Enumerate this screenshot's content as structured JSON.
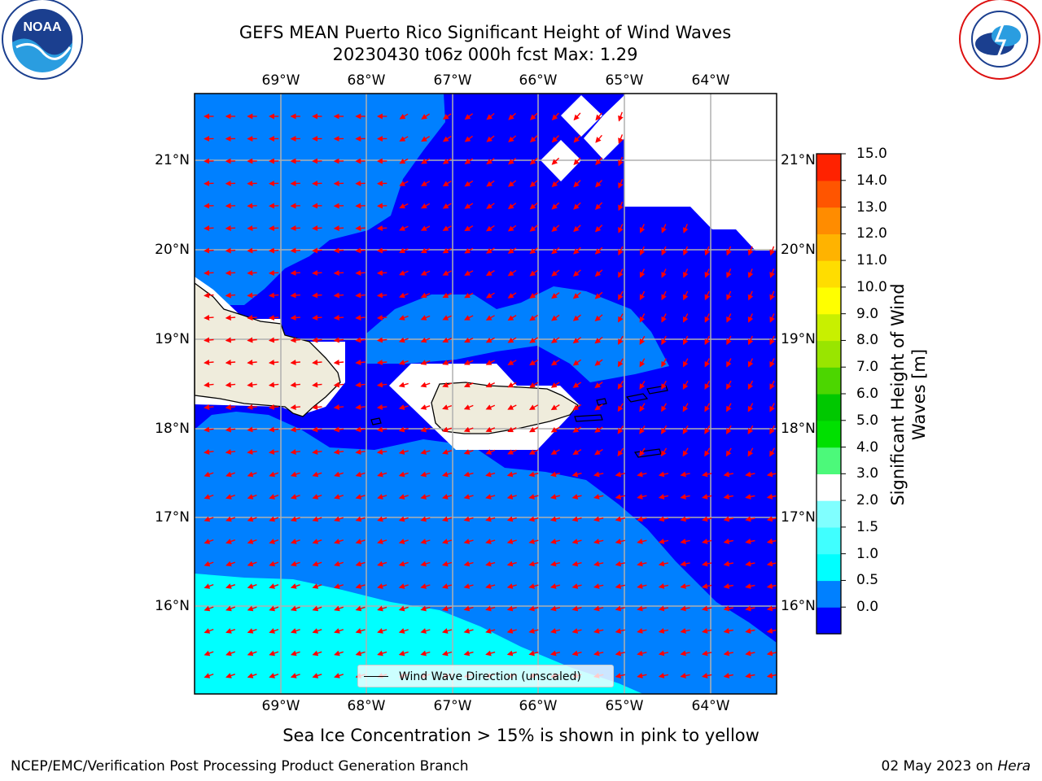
{
  "header": {
    "title_line1": "GEFS MEAN Puerto Rico Significant Height of Wind Waves",
    "title_line2": "20230430 t06z 000h fcst   Max: 1.29"
  },
  "map": {
    "lon_labels": [
      "69°W",
      "68°W",
      "67°W",
      "66°W",
      "65°W",
      "64°W"
    ],
    "lat_labels": [
      "21°N",
      "20°N",
      "19°N",
      "18°N",
      "17°N",
      "16°N"
    ],
    "legend_label": "Wind Wave Direction (unscaled)",
    "arrow_color": "#ff0000",
    "land_color": "#efecdc"
  },
  "colorbar": {
    "title": "Significant Height of Wind Waves [m]",
    "ticks": [
      "15.0",
      "14.0",
      "13.0",
      "12.0",
      "11.0",
      "10.0",
      "9.0",
      "8.0",
      "7.0",
      "6.0",
      "5.0",
      "4.0",
      "3.0",
      "2.0",
      "1.5",
      "1.0",
      "0.5",
      "0.0"
    ],
    "colors": [
      "#0000ff",
      "#0080ff",
      "#00ffff",
      "#40ffff",
      "#80ffff",
      "#ffffff",
      "#4cf97a",
      "#00e000",
      "#00c800",
      "#4cd600",
      "#99e500",
      "#c8f000",
      "#ffff00",
      "#ffdd00",
      "#ffb300",
      "#ff8c00",
      "#ff5500",
      "#ff2200",
      "#ff0000"
    ]
  },
  "footer": {
    "note": "Sea Ice Concentration > 15% is shown in pink to yellow",
    "branch": "NCEP/EMC/Verification Post Processing Product Generation Branch",
    "date": "02 May 2023 on",
    "host": "Hera"
  },
  "logos": {
    "noaa": "NOAA",
    "noaa_ring": "NATIONAL OCEANIC AND ATMOSPHERIC ADMINISTRATION · U.S. DEPARTMENT OF COMMERCE",
    "nws_ring": "NATIONAL WEATHER SERVICE"
  }
}
